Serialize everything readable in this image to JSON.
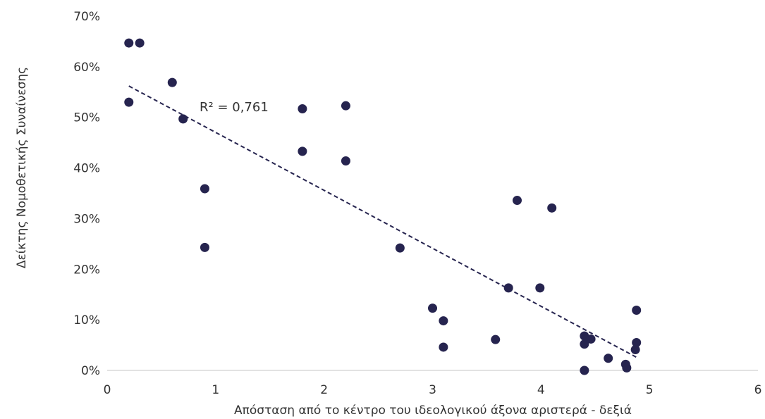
{
  "chart_data": {
    "type": "scatter",
    "xlabel": "Απόσταση από το κέντρο του ιδεολογικού άξονα αριστερά - δεξιά",
    "ylabel": "Δείκτης Νομοθετικής Συναίνεσης",
    "xlim": [
      0,
      6
    ],
    "ylim": [
      0,
      0.7
    ],
    "x_ticks": [
      0,
      1,
      2,
      3,
      4,
      5,
      6
    ],
    "y_ticks": [
      0,
      0.1,
      0.2,
      0.3,
      0.4,
      0.5,
      0.6,
      0.7
    ],
    "x_tick_labels": [
      "0",
      "1",
      "2",
      "3",
      "4",
      "5",
      "6"
    ],
    "y_tick_labels": [
      "0%",
      "10%",
      "20%",
      "30%",
      "40%",
      "50%",
      "60%",
      "70%"
    ],
    "grid": false,
    "point_color": "#26244f",
    "trendline": {
      "style": "dashed",
      "x_range": [
        0.2,
        4.88
      ],
      "y_values": [
        0.562,
        0.026
      ],
      "r_squared_label": "R² = 0,761"
    },
    "points": [
      {
        "x": 0.2,
        "y": 0.647
      },
      {
        "x": 0.3,
        "y": 0.647
      },
      {
        "x": 0.2,
        "y": 0.53
      },
      {
        "x": 0.6,
        "y": 0.569
      },
      {
        "x": 0.7,
        "y": 0.497
      },
      {
        "x": 0.9,
        "y": 0.359
      },
      {
        "x": 0.9,
        "y": 0.243
      },
      {
        "x": 1.8,
        "y": 0.517
      },
      {
        "x": 1.8,
        "y": 0.433
      },
      {
        "x": 2.2,
        "y": 0.523
      },
      {
        "x": 2.2,
        "y": 0.414
      },
      {
        "x": 2.7,
        "y": 0.242
      },
      {
        "x": 3.0,
        "y": 0.123
      },
      {
        "x": 3.1,
        "y": 0.098
      },
      {
        "x": 3.1,
        "y": 0.046
      },
      {
        "x": 3.58,
        "y": 0.061
      },
      {
        "x": 3.7,
        "y": 0.163
      },
      {
        "x": 3.78,
        "y": 0.336
      },
      {
        "x": 3.99,
        "y": 0.163
      },
      {
        "x": 4.1,
        "y": 0.321
      },
      {
        "x": 4.4,
        "y": 0.068
      },
      {
        "x": 4.4,
        "y": 0.052
      },
      {
        "x": 4.46,
        "y": 0.062
      },
      {
        "x": 4.4,
        "y": 0.0
      },
      {
        "x": 4.62,
        "y": 0.024
      },
      {
        "x": 4.78,
        "y": 0.012
      },
      {
        "x": 4.79,
        "y": 0.005
      },
      {
        "x": 4.87,
        "y": 0.041
      },
      {
        "x": 4.88,
        "y": 0.055
      },
      {
        "x": 4.88,
        "y": 0.119
      }
    ]
  }
}
